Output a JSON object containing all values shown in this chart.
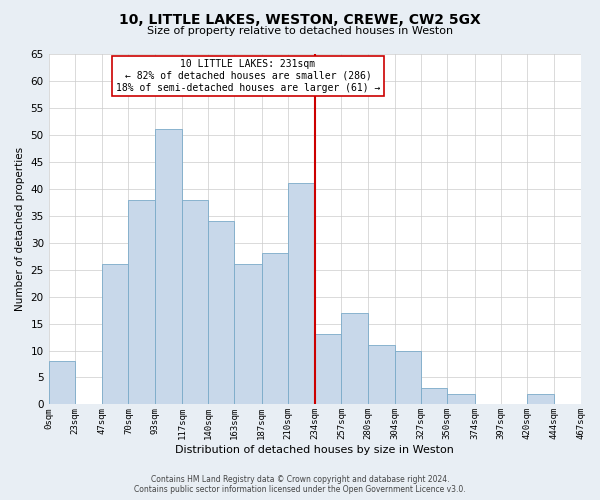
{
  "title": "10, LITTLE LAKES, WESTON, CREWE, CW2 5GX",
  "subtitle": "Size of property relative to detached houses in Weston",
  "xlabel": "Distribution of detached houses by size in Weston",
  "ylabel": "Number of detached properties",
  "footer_line1": "Contains HM Land Registry data © Crown copyright and database right 2024.",
  "footer_line2": "Contains public sector information licensed under the Open Government Licence v3.0.",
  "annotation_line1": "10 LITTLE LAKES: 231sqm",
  "annotation_line2": "← 82% of detached houses are smaller (286)",
  "annotation_line3": "18% of semi-detached houses are larger (61) →",
  "bar_color": "#c8d8ea",
  "bar_edge_color": "#7aaac8",
  "reference_line_x": 234,
  "reference_line_color": "#cc0000",
  "bin_edges": [
    0,
    23,
    47,
    70,
    93,
    117,
    140,
    163,
    187,
    210,
    234,
    257,
    280,
    304,
    327,
    350,
    374,
    397,
    420,
    444,
    467
  ],
  "bin_labels": [
    "0sqm",
    "23sqm",
    "47sqm",
    "70sqm",
    "93sqm",
    "117sqm",
    "140sqm",
    "163sqm",
    "187sqm",
    "210sqm",
    "234sqm",
    "257sqm",
    "280sqm",
    "304sqm",
    "327sqm",
    "350sqm",
    "374sqm",
    "397sqm",
    "420sqm",
    "444sqm",
    "467sqm"
  ],
  "counts": [
    8,
    0,
    26,
    38,
    51,
    38,
    34,
    26,
    28,
    41,
    13,
    17,
    11,
    10,
    3,
    2,
    0,
    0,
    2,
    0
  ],
  "ylim": [
    0,
    65
  ],
  "yticks": [
    0,
    5,
    10,
    15,
    20,
    25,
    30,
    35,
    40,
    45,
    50,
    55,
    60,
    65
  ],
  "background_color": "#e8eef4",
  "plot_background_color": "#ffffff"
}
